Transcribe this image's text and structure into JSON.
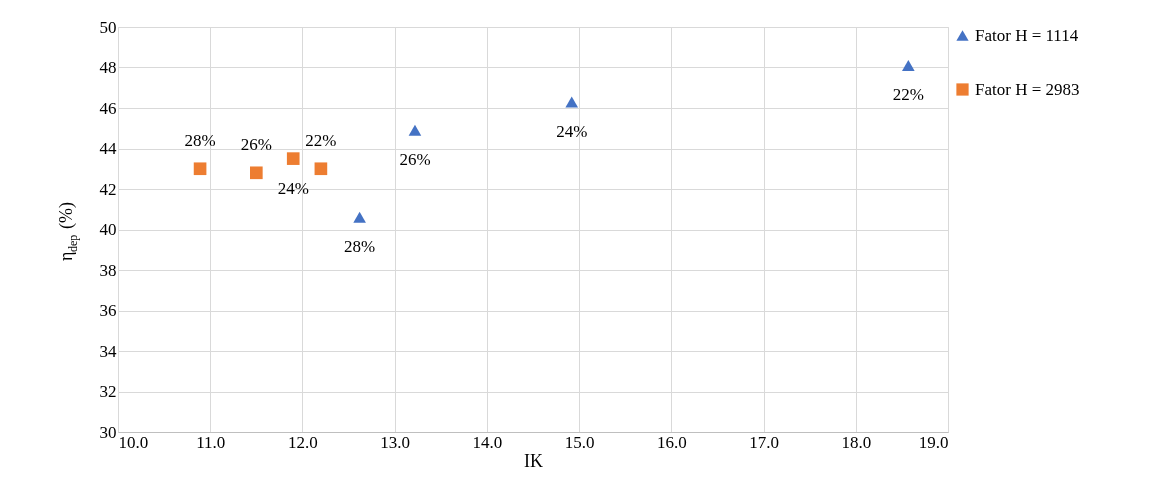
{
  "chart_data": {
    "type": "scatter",
    "xlabel": "IK",
    "ylabel": "η$_{dep}$ (%)",
    "xlim": [
      10,
      19
    ],
    "xticks": [
      {
        "value": 10,
        "label": "10.0"
      },
      {
        "value": 11,
        "label": "11.0"
      },
      {
        "value": 12,
        "label": "12.0"
      },
      {
        "value": 13,
        "label": "13.0"
      },
      {
        "value": 14,
        "label": "14.0"
      },
      {
        "value": 15,
        "label": "15.0"
      },
      {
        "value": 16,
        "label": "16.0"
      },
      {
        "value": 17,
        "label": "17.0"
      },
      {
        "value": 18,
        "label": "18.0"
      },
      {
        "value": 19,
        "label": "19.0"
      }
    ],
    "ylim": [
      30,
      50
    ],
    "yticks": [
      30,
      32,
      34,
      36,
      38,
      40,
      42,
      44,
      46,
      48,
      50
    ],
    "grid": true,
    "legend": "right",
    "series": [
      {
        "name": "Fator H = 1114",
        "color": "#4472c4",
        "marker": "triangle",
        "x": [
          12.62,
          13.22,
          14.92,
          18.57
        ],
        "values": [
          40.6,
          44.9,
          46.3,
          48.1
        ]
      },
      {
        "name": "Fator H = 2983",
        "color": "#ed7d31",
        "marker": "square",
        "x": [
          10.89,
          11.5,
          11.9,
          12.2
        ],
        "values": [
          43.0,
          42.8,
          43.5,
          43.0
        ]
      }
    ],
    "annotations": [
      {
        "text": "28%",
        "x": 12.62,
        "y": 40.6
      },
      {
        "text": "26%",
        "x": 13.22,
        "y": 44.9
      },
      {
        "text": "24%",
        "x": 14.92,
        "y": 46.3
      },
      {
        "text": "22%",
        "x": 18.57,
        "y": 48.1
      },
      {
        "text": "28%",
        "x": 10.89,
        "y": 43.0
      },
      {
        "text": "26%",
        "x": 11.5,
        "y": 42.8
      },
      {
        "text": "24%",
        "x": 11.9,
        "y": 43.5
      },
      {
        "text": "22%",
        "x": 12.2,
        "y": 43.0
      }
    ]
  }
}
